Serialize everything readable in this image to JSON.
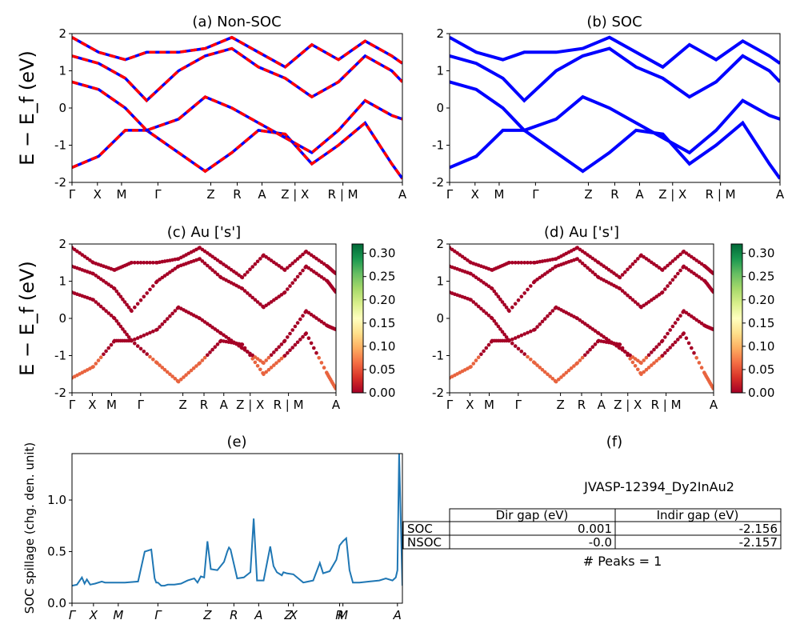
{
  "chart_data": [
    {
      "id": "a",
      "type": "line",
      "title": "(a) Non-SOC",
      "ylabel": "E − E_f (eV)",
      "ylim": [
        -2,
        2
      ],
      "yticks": [
        "-2",
        "-1",
        "0",
        "1",
        "2"
      ],
      "kpath": [
        "Γ",
        "X",
        "M",
        "Γ",
        "Z",
        "R",
        "A",
        "Z | X",
        "R | M",
        "A"
      ],
      "colors": {
        "spin_up": "#0000ff",
        "spin_down": "#ff0000"
      },
      "bands": [
        {
          "x": [
            0,
            0.05,
            0.1,
            0.14,
            0.2,
            0.25,
            0.3,
            0.35,
            0.4,
            0.45,
            0.5,
            0.55,
            0.6,
            0.62
          ],
          "y": [
            -1.6,
            -1.3,
            -0.6,
            -0.6,
            -1.2,
            -1.7,
            -1.2,
            -0.6,
            -0.7,
            -1.5,
            -1.0,
            -0.4,
            -1.5,
            -1.9
          ]
        },
        {
          "x": [
            0,
            0.05,
            0.1,
            0.14,
            0.2,
            0.25,
            0.3,
            0.35,
            0.4,
            0.45,
            0.5,
            0.55,
            0.6,
            0.62
          ],
          "y": [
            0.7,
            0.5,
            0.0,
            -0.6,
            -0.3,
            0.3,
            0.0,
            -0.4,
            -0.8,
            -1.2,
            -0.6,
            0.2,
            -0.2,
            -0.3
          ]
        },
        {
          "x": [
            0,
            0.05,
            0.1,
            0.14,
            0.2,
            0.25,
            0.3,
            0.35,
            0.4,
            0.45,
            0.5,
            0.55,
            0.6,
            0.62
          ],
          "y": [
            1.4,
            1.2,
            0.8,
            0.2,
            1.0,
            1.4,
            1.6,
            1.1,
            0.8,
            0.3,
            0.7,
            1.4,
            1.0,
            0.7
          ]
        },
        {
          "x": [
            0,
            0.05,
            0.1,
            0.14,
            0.2,
            0.25,
            0.3,
            0.35,
            0.4,
            0.45,
            0.5,
            0.55,
            0.6,
            0.62
          ],
          "y": [
            1.9,
            1.5,
            1.3,
            1.5,
            1.5,
            1.6,
            1.9,
            1.5,
            1.1,
            1.7,
            1.3,
            1.8,
            1.4,
            1.2
          ]
        }
      ]
    },
    {
      "id": "b",
      "type": "line",
      "title": "(b) SOC",
      "ylim": [
        -2,
        2
      ],
      "yticks": [
        "-2",
        "-1",
        "0",
        "1",
        "2"
      ],
      "kpath": [
        "Γ",
        "X",
        "M",
        "Γ",
        "Z",
        "R",
        "A",
        "Z | X",
        "R | M",
        "A"
      ],
      "colors": {
        "bands": "#0000ff"
      },
      "bands": [
        {
          "x": [
            0,
            0.05,
            0.1,
            0.14,
            0.2,
            0.25,
            0.3,
            0.35,
            0.4,
            0.45,
            0.5,
            0.55,
            0.6,
            0.62
          ],
          "y": [
            -1.6,
            -1.3,
            -0.6,
            -0.6,
            -1.2,
            -1.7,
            -1.2,
            -0.6,
            -0.7,
            -1.5,
            -1.0,
            -0.4,
            -1.5,
            -1.9
          ]
        },
        {
          "x": [
            0,
            0.05,
            0.1,
            0.14,
            0.2,
            0.25,
            0.3,
            0.35,
            0.4,
            0.45,
            0.5,
            0.55,
            0.6,
            0.62
          ],
          "y": [
            0.7,
            0.5,
            0.0,
            -0.6,
            -0.3,
            0.3,
            0.0,
            -0.4,
            -0.8,
            -1.2,
            -0.6,
            0.2,
            -0.2,
            -0.3
          ]
        },
        {
          "x": [
            0,
            0.05,
            0.1,
            0.14,
            0.2,
            0.25,
            0.3,
            0.35,
            0.4,
            0.45,
            0.5,
            0.55,
            0.6,
            0.62
          ],
          "y": [
            1.4,
            1.2,
            0.8,
            0.2,
            1.0,
            1.4,
            1.6,
            1.1,
            0.8,
            0.3,
            0.7,
            1.4,
            1.0,
            0.7
          ]
        },
        {
          "x": [
            0,
            0.05,
            0.1,
            0.14,
            0.2,
            0.25,
            0.3,
            0.35,
            0.4,
            0.45,
            0.5,
            0.55,
            0.6,
            0.62
          ],
          "y": [
            1.9,
            1.5,
            1.3,
            1.5,
            1.5,
            1.6,
            1.9,
            1.5,
            1.1,
            1.7,
            1.3,
            1.8,
            1.4,
            1.2
          ]
        }
      ]
    },
    {
      "id": "c",
      "type": "scatter",
      "title": "(c)  Au ['s']",
      "ylabel": "E − E_f (eV)",
      "ylim": [
        -2,
        2
      ],
      "yticks": [
        "-2",
        "-1",
        "0",
        "1",
        "2"
      ],
      "kpath": [
        "Γ",
        "X",
        "M",
        "Γ",
        "Z",
        "R",
        "A",
        "Z | X",
        "R | M",
        "A"
      ],
      "colorbar": {
        "range": [
          0,
          0.32
        ],
        "ticks": [
          "0.00",
          "0.05",
          "0.10",
          "0.15",
          "0.20",
          "0.25",
          "0.30"
        ],
        "colormap": "RdYlGn"
      },
      "bands": [
        {
          "x": [
            0,
            0.05,
            0.1,
            0.14,
            0.2,
            0.25,
            0.3,
            0.35,
            0.4,
            0.45,
            0.5,
            0.55,
            0.6,
            0.62
          ],
          "y": [
            -1.6,
            -1.3,
            -0.6,
            -0.6,
            -1.2,
            -1.7,
            -1.2,
            -0.6,
            -0.7,
            -1.5,
            -1.0,
            -0.4,
            -1.5,
            -1.9
          ]
        },
        {
          "x": [
            0,
            0.05,
            0.1,
            0.14,
            0.2,
            0.25,
            0.3,
            0.35,
            0.4,
            0.45,
            0.5,
            0.55,
            0.6,
            0.62
          ],
          "y": [
            0.7,
            0.5,
            0.0,
            -0.6,
            -0.3,
            0.3,
            0.0,
            -0.4,
            -0.8,
            -1.2,
            -0.6,
            0.2,
            -0.2,
            -0.3
          ]
        },
        {
          "x": [
            0,
            0.05,
            0.1,
            0.14,
            0.2,
            0.25,
            0.3,
            0.35,
            0.4,
            0.45,
            0.5,
            0.55,
            0.6,
            0.62
          ],
          "y": [
            1.4,
            1.2,
            0.8,
            0.2,
            1.0,
            1.4,
            1.6,
            1.1,
            0.8,
            0.3,
            0.7,
            1.4,
            1.0,
            0.7
          ]
        },
        {
          "x": [
            0,
            0.05,
            0.1,
            0.14,
            0.2,
            0.25,
            0.3,
            0.35,
            0.4,
            0.45,
            0.5,
            0.55,
            0.6,
            0.62
          ],
          "y": [
            1.9,
            1.5,
            1.3,
            1.5,
            1.5,
            1.6,
            1.9,
            1.5,
            1.1,
            1.7,
            1.3,
            1.8,
            1.4,
            1.2
          ]
        }
      ]
    },
    {
      "id": "d",
      "type": "scatter",
      "title": "(d) Au ['s']",
      "ylim": [
        -2,
        2
      ],
      "yticks": [
        "-2",
        "-1",
        "0",
        "1",
        "2"
      ],
      "kpath": [
        "Γ",
        "X",
        "M",
        "Γ",
        "Z",
        "R",
        "A",
        "Z | X",
        "R | M",
        "A"
      ],
      "colorbar": {
        "range": [
          0,
          0.32
        ],
        "ticks": [
          "0.00",
          "0.05",
          "0.10",
          "0.15",
          "0.20",
          "0.25",
          "0.30"
        ],
        "colormap": "RdYlGn"
      },
      "bands": [
        {
          "x": [
            0,
            0.05,
            0.1,
            0.14,
            0.2,
            0.25,
            0.3,
            0.35,
            0.4,
            0.45,
            0.5,
            0.55,
            0.6,
            0.62
          ],
          "y": [
            -1.6,
            -1.3,
            -0.6,
            -0.6,
            -1.2,
            -1.7,
            -1.2,
            -0.6,
            -0.7,
            -1.5,
            -1.0,
            -0.4,
            -1.5,
            -1.9
          ]
        },
        {
          "x": [
            0,
            0.05,
            0.1,
            0.14,
            0.2,
            0.25,
            0.3,
            0.35,
            0.4,
            0.45,
            0.5,
            0.55,
            0.6,
            0.62
          ],
          "y": [
            0.7,
            0.5,
            0.0,
            -0.6,
            -0.3,
            0.3,
            0.0,
            -0.4,
            -0.8,
            -1.2,
            -0.6,
            0.2,
            -0.2,
            -0.3
          ]
        },
        {
          "x": [
            0,
            0.05,
            0.1,
            0.14,
            0.2,
            0.25,
            0.3,
            0.35,
            0.4,
            0.45,
            0.5,
            0.55,
            0.6,
            0.62
          ],
          "y": [
            1.4,
            1.2,
            0.8,
            0.2,
            1.0,
            1.4,
            1.6,
            1.1,
            0.8,
            0.3,
            0.7,
            1.4,
            1.0,
            0.7
          ]
        },
        {
          "x": [
            0,
            0.05,
            0.1,
            0.14,
            0.2,
            0.25,
            0.3,
            0.35,
            0.4,
            0.45,
            0.5,
            0.55,
            0.6,
            0.62
          ],
          "y": [
            1.9,
            1.5,
            1.3,
            1.5,
            1.5,
            1.6,
            1.9,
            1.5,
            1.1,
            1.7,
            1.3,
            1.8,
            1.4,
            1.2
          ]
        }
      ]
    },
    {
      "id": "e",
      "type": "line",
      "title": "(e)",
      "ylabel": "SOC spillage (chg. den. unit)",
      "ylim": [
        0,
        1.45
      ],
      "yticks": [
        "0.0",
        "0.5",
        "1.0"
      ],
      "kpath_italic": [
        "Γ",
        "X",
        "M",
        "Γ",
        "Z",
        "R",
        "A",
        "Z",
        "X",
        "R",
        "M",
        "A"
      ],
      "series": [
        {
          "color": "#1f77b4",
          "x": [
            0,
            0.015,
            0.03,
            0.038,
            0.045,
            0.055,
            0.07,
            0.09,
            0.1,
            0.13,
            0.16,
            0.2,
            0.22,
            0.24,
            0.25,
            0.255,
            0.26,
            0.27,
            0.28,
            0.29,
            0.3,
            0.31,
            0.33,
            0.35,
            0.37,
            0.38,
            0.39,
            0.4,
            0.41,
            0.42,
            0.44,
            0.46,
            0.47,
            0.475,
            0.48,
            0.5,
            0.52,
            0.54,
            0.55,
            0.56,
            0.57,
            0.58,
            0.6,
            0.61,
            0.62,
            0.63,
            0.635,
            0.64,
            0.65,
            0.67,
            0.7,
            0.73,
            0.75,
            0.76,
            0.78,
            0.8,
            0.81,
            0.82,
            0.83,
            0.84,
            0.85,
            0.86,
            0.87,
            0.9,
            0.93,
            0.95,
            0.97,
            0.98,
            0.985,
            0.99,
            1.0
          ],
          "y": [
            0.17,
            0.18,
            0.25,
            0.19,
            0.23,
            0.18,
            0.19,
            0.21,
            0.2,
            0.2,
            0.2,
            0.21,
            0.5,
            0.52,
            0.24,
            0.2,
            0.2,
            0.17,
            0.17,
            0.18,
            0.18,
            0.18,
            0.19,
            0.22,
            0.24,
            0.2,
            0.26,
            0.25,
            0.6,
            0.33,
            0.32,
            0.4,
            0.5,
            0.54,
            0.52,
            0.24,
            0.25,
            0.3,
            0.82,
            0.22,
            0.22,
            0.22,
            0.55,
            0.36,
            0.3,
            0.28,
            0.27,
            0.3,
            0.29,
            0.28,
            0.2,
            0.22,
            0.39,
            0.29,
            0.31,
            0.42,
            0.56,
            0.6,
            0.63,
            0.32,
            0.2,
            0.2,
            0.2,
            0.21,
            0.22,
            0.24,
            0.22,
            0.25,
            0.32,
            1.45,
            0.17
          ]
        }
      ]
    }
  ],
  "panel_f": {
    "title": "(f)",
    "material": "JVASP-12394_Dy2InAu2",
    "columns": [
      "Dir gap (eV)",
      "Indir gap (eV)"
    ],
    "rows": [
      {
        "label": "SOC",
        "dir": "0.001",
        "indir": "-2.156"
      },
      {
        "label": "NSOC",
        "dir": "-0.0",
        "indir": "-2.157"
      }
    ],
    "peaks": "# Peaks = 1"
  }
}
